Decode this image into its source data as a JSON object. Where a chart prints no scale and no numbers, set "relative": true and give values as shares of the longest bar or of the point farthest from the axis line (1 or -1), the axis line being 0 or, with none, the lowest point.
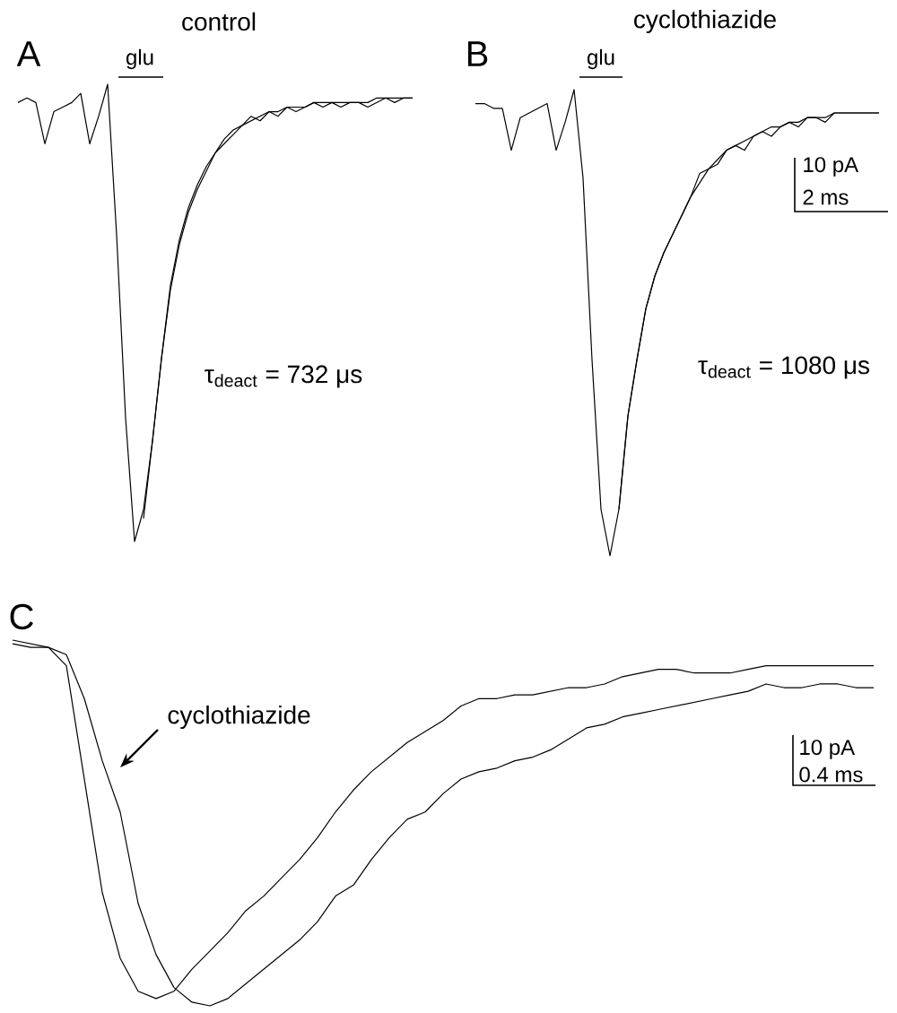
{
  "chart_data": [
    {
      "type": "line",
      "relative": true,
      "title": "control",
      "annotations": [
        "A",
        "glu",
        "τ$_{deact}$ = 732 μs"
      ],
      "categories": [
        null,
        null,
        null,
        null,
        null,
        null,
        null,
        null,
        null,
        null,
        null,
        null,
        null,
        null,
        null,
        null,
        null,
        null,
        null,
        null,
        null,
        null,
        null,
        null,
        null,
        null,
        null,
        null,
        null,
        null,
        null,
        null,
        null,
        null,
        null,
        null,
        null,
        null,
        null,
        null,
        null,
        null,
        null,
        null,
        null
      ],
      "series": [
        {
          "color": "#000000",
          "values": [
            0.96,
            0.97,
            0.96,
            0.87,
            0.94,
            0.95,
            0.96,
            0.98,
            0.87,
            0.93,
            1,
            0.67,
            0.27,
            0,
            0.07,
            0.22,
            0.4,
            0.56,
            0.66,
            0.73,
            0.78,
            0.82,
            0.85,
            0.88,
            0.9,
            0.91,
            0.93,
            0.92,
            0.94,
            0.93,
            0.95,
            0.94,
            0.95,
            0.96,
            0.95,
            0.96,
            0.95,
            0.96,
            0.96,
            0.95,
            0.96,
            0.97,
            0.96,
            0.97,
            0.97
          ]
        },
        {
          "color": "#000000",
          "values": [
            null,
            null,
            null,
            null,
            null,
            null,
            null,
            null,
            null,
            null,
            null,
            null,
            null,
            null,
            0.05,
            0.22,
            0.4,
            0.55,
            0.65,
            0.72,
            0.77,
            0.81,
            0.85,
            0.87,
            0.89,
            0.91,
            0.92,
            0.93,
            0.94,
            0.94,
            0.95,
            0.95,
            0.95,
            0.96,
            0.96,
            0.96,
            0.96,
            0.96,
            0.96,
            0.96,
            0.97,
            0.97,
            0.97,
            0.97,
            0.97
          ]
        }
      ]
    },
    {
      "type": "line",
      "relative": true,
      "title": "cyclothiazide",
      "annotations": [
        "B",
        "glu",
        "τ$_{deact}$ = 1080 μs",
        "10 pA",
        "2 ms"
      ],
      "categories": [
        null,
        null,
        null,
        null,
        null,
        null,
        null,
        null,
        null,
        null,
        null,
        null,
        null,
        null,
        null,
        null,
        null,
        null,
        null,
        null,
        null,
        null,
        null,
        null,
        null,
        null,
        null,
        null,
        null,
        null,
        null,
        null,
        null,
        null,
        null,
        null,
        null,
        null,
        null,
        null,
        null,
        null,
        null,
        null,
        null,
        null
      ],
      "series": [
        {
          "color": "#000000",
          "values": [
            0.97,
            0.97,
            0.96,
            0.96,
            0.87,
            0.94,
            0.95,
            0.96,
            0.97,
            0.87,
            0.93,
            1,
            0.81,
            0.42,
            0.1,
            0,
            0.1,
            0.3,
            0.42,
            0.53,
            0.6,
            0.65,
            0.69,
            0.73,
            0.77,
            0.82,
            0.83,
            0.84,
            0.87,
            0.88,
            0.87,
            0.9,
            0.91,
            0.9,
            0.92,
            0.93,
            0.92,
            0.94,
            0.94,
            0.93,
            0.95,
            0.95,
            0.95,
            0.95,
            0.95,
            0.95
          ]
        },
        {
          "color": "#000000",
          "values": [
            null,
            null,
            null,
            null,
            null,
            null,
            null,
            null,
            null,
            null,
            null,
            null,
            null,
            null,
            null,
            null,
            0.1,
            0.3,
            0.42,
            0.53,
            0.6,
            0.65,
            0.69,
            0.73,
            0.77,
            0.8,
            0.83,
            0.85,
            0.87,
            0.88,
            0.89,
            0.9,
            0.91,
            0.92,
            0.92,
            0.93,
            0.93,
            0.94,
            0.94,
            0.94,
            0.95,
            0.95,
            0.95,
            0.95,
            0.95,
            0.95
          ]
        }
      ]
    },
    {
      "type": "line",
      "relative": true,
      "annotations": [
        "C",
        "10 pA",
        "0.4 ms"
      ],
      "categories": [
        null,
        null,
        null,
        null,
        null,
        null,
        null,
        null,
        null,
        null,
        null,
        null,
        null,
        null,
        null,
        null,
        null,
        null,
        null,
        null,
        null,
        null,
        null,
        null,
        null,
        null,
        null,
        null,
        null,
        null,
        null,
        null,
        null,
        null,
        null,
        null,
        null,
        null,
        null,
        null,
        null,
        null,
        null,
        null,
        null,
        null,
        null,
        null,
        null
      ],
      "series": [
        {
          "color": "#000000",
          "values": [
            1,
            0.99,
            0.98,
            0.93,
            0.62,
            0.31,
            0.13,
            0.04,
            0.02,
            0.04,
            0.1,
            0.15,
            0.2,
            0.26,
            0.3,
            0.35,
            0.4,
            0.46,
            0.53,
            0.59,
            0.64,
            0.68,
            0.72,
            0.75,
            0.78,
            0.82,
            0.84,
            0.84,
            0.85,
            0.85,
            0.86,
            0.87,
            0.87,
            0.88,
            0.9,
            0.91,
            0.92,
            0.92,
            0.91,
            0.91,
            0.91,
            0.92,
            0.93,
            0.93,
            0.93,
            0.93,
            0.93,
            0.93,
            0.93
          ]
        },
        {
          "name": "cyclothiazide",
          "color": "#000000",
          "values": [
            0.99,
            0.98,
            0.98,
            0.96,
            0.84,
            0.67,
            0.53,
            0.28,
            0.14,
            0.05,
            0.01,
            0,
            0.02,
            0.06,
            0.1,
            0.14,
            0.18,
            0.23,
            0.3,
            0.33,
            0.4,
            0.46,
            0.51,
            0.53,
            0.58,
            0.62,
            0.64,
            0.65,
            0.67,
            0.68,
            0.7,
            0.73,
            0.76,
            0.77,
            0.79,
            0.8,
            0.81,
            0.82,
            0.83,
            0.84,
            0.85,
            0.86,
            0.88,
            0.87,
            0.87,
            0.88,
            0.88,
            0.87,
            0.87
          ]
        }
      ]
    }
  ]
}
